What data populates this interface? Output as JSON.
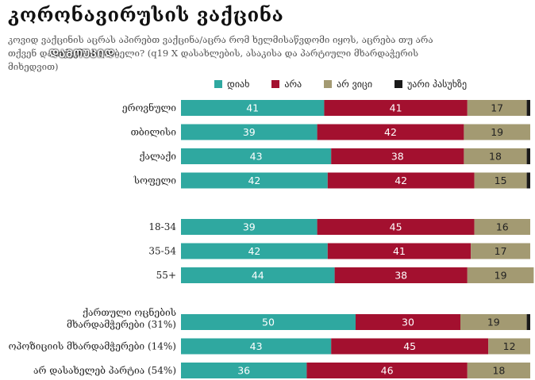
{
  "title": "კორონავირუსის ვაქცინა",
  "subtitle": "კოვიდ ვაქცინის აცრას აპირებთ ვაქცინა/აცრა რომ ხელმისაწვდომი იყოს, აცრება თუ არა თქვენ და თქვენ ახლობელი? (q19 X დასახლების, ასაკისა და პარტიული მხარდაჭერის მიხედვით)",
  "watermark": "ᲓᲐᲛᲝᲣᲙᲘᲓ.",
  "colors": {
    "yes": "#2fa8a0",
    "no": "#a3102f",
    "dk": "#a39a72",
    "ra": "#1a1a1a"
  },
  "chart_data": {
    "type": "bar",
    "orientation": "horizontal",
    "stacked": true,
    "legend_position": "top",
    "series": [
      {
        "name": "დიახ",
        "key": "yes"
      },
      {
        "name": "არა",
        "key": "no"
      },
      {
        "name": "არ ვიცი",
        "key": "dk"
      },
      {
        "name": "უარი პასუხზე",
        "key": "ra"
      }
    ],
    "groups": [
      {
        "rows": [
          {
            "label": [
              "ეროვნული"
            ],
            "values": [
              41,
              41,
              17,
              1
            ]
          },
          {
            "label": [
              "თბილისი"
            ],
            "values": [
              39,
              42,
              19,
              0
            ]
          },
          {
            "label": [
              "ქალაქი"
            ],
            "values": [
              43,
              38,
              18,
              1
            ]
          },
          {
            "label": [
              "სოფელი"
            ],
            "values": [
              42,
              42,
              15,
              1
            ]
          }
        ]
      },
      {
        "rows": [
          {
            "label": [
              "18-34"
            ],
            "values": [
              39,
              45,
              16,
              0
            ]
          },
          {
            "label": [
              "35-54"
            ],
            "values": [
              42,
              41,
              17,
              0
            ]
          },
          {
            "label": [
              "55+"
            ],
            "values": [
              44,
              38,
              19,
              0
            ]
          }
        ]
      },
      {
        "rows": [
          {
            "label": [
              "ქართული ოცნების",
              "მხარდამჭერები (31%)"
            ],
            "values": [
              50,
              30,
              19,
              1
            ]
          },
          {
            "label": [
              "ოპოზიციის მხარდამჭერები (14%)"
            ],
            "values": [
              43,
              45,
              12,
              0
            ]
          },
          {
            "label": [
              "არ დასახელებ პარტია (54%)"
            ],
            "values": [
              36,
              46,
              18,
              0
            ]
          }
        ]
      }
    ]
  }
}
